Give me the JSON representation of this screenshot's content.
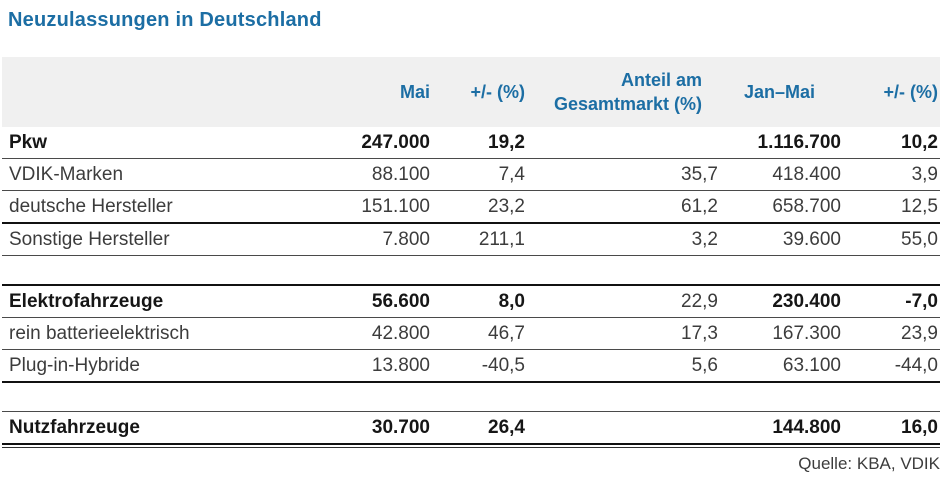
{
  "page": {
    "title": "Neuzulassungen in Deutschland",
    "source": "Quelle: KBA, VDIK"
  },
  "colors": {
    "accent_blue": "#1c6ea4",
    "header_bg": "#f0f0f0",
    "body_text": "#3c3c3c",
    "rule_thin": "#4a4a4a",
    "rule_thick": "#111111"
  },
  "table": {
    "headers": {
      "label": "",
      "mai": "Mai",
      "mai_change": "+/-  (%)",
      "share_line1": "Anteil am",
      "share_line2": "Gesamtmarkt (%)",
      "jan_mai": "Jan–Mai",
      "jan_mai_change": "+/-  (%)"
    },
    "rows": [
      {
        "label": "Pkw",
        "mai": "247.000",
        "mai_change": "19,2",
        "share": "",
        "jan_mai": "1.116.700",
        "jan_mai_change": "10,2"
      },
      {
        "label": "VDIK-Marken",
        "mai": "88.100",
        "mai_change": "7,4",
        "share": "35,7",
        "jan_mai": "418.400",
        "jan_mai_change": "3,9"
      },
      {
        "label": "deutsche Hersteller",
        "mai": "151.100",
        "mai_change": "23,2",
        "share": "61,2",
        "jan_mai": "658.700",
        "jan_mai_change": "12,5"
      },
      {
        "label": "Sonstige Hersteller",
        "mai": "7.800",
        "mai_change": "211,1",
        "share": "3,2",
        "jan_mai": "39.600",
        "jan_mai_change": "55,0"
      },
      {
        "label": "Elektrofahrzeuge",
        "mai": "56.600",
        "mai_change": "8,0",
        "share": "22,9",
        "jan_mai": "230.400",
        "jan_mai_change": "-7,0"
      },
      {
        "label": "rein batterieelektrisch",
        "mai": "42.800",
        "mai_change": "46,7",
        "share": "17,3",
        "jan_mai": "167.300",
        "jan_mai_change": "23,9"
      },
      {
        "label": "Plug-in-Hybride",
        "mai": "13.800",
        "mai_change": "-40,5",
        "share": "5,6",
        "jan_mai": "63.100",
        "jan_mai_change": "-44,0"
      },
      {
        "label": "Nutzfahrzeuge",
        "mai": "30.700",
        "mai_change": "26,4",
        "share": "",
        "jan_mai": "144.800",
        "jan_mai_change": "16,0"
      }
    ]
  },
  "chart_data": {
    "type": "table",
    "title": "Neuzulassungen in Deutschland",
    "columns": [
      "",
      "Mai",
      "+/- (%)",
      "Anteil am Gesamtmarkt (%)",
      "Jan–Mai",
      "+/- (%)"
    ],
    "rows": [
      [
        "Pkw",
        "247.000",
        "19,2",
        "",
        "1.116.700",
        "10,2"
      ],
      [
        "VDIK-Marken",
        "88.100",
        "7,4",
        "35,7",
        "418.400",
        "3,9"
      ],
      [
        "deutsche Hersteller",
        "151.100",
        "23,2",
        "61,2",
        "658.700",
        "12,5"
      ],
      [
        "Sonstige Hersteller",
        "7.800",
        "211,1",
        "3,2",
        "39.600",
        "55,0"
      ],
      [
        "Elektrofahrzeuge",
        "56.600",
        "8,0",
        "22,9",
        "230.400",
        "-7,0"
      ],
      [
        "rein batterieelektrisch",
        "42.800",
        "46,7",
        "17,3",
        "167.300",
        "23,9"
      ],
      [
        "Plug-in-Hybride",
        "13.800",
        "-40,5",
        "5,6",
        "63.100",
        "-44,0"
      ],
      [
        "Nutzfahrzeuge",
        "30.700",
        "26,4",
        "",
        "144.800",
        "16,0"
      ]
    ],
    "source": "Quelle: KBA, VDIK",
    "bold_rows": [
      "Pkw",
      "Elektrofahrzeuge",
      "Nutzfahrzeuge"
    ]
  }
}
